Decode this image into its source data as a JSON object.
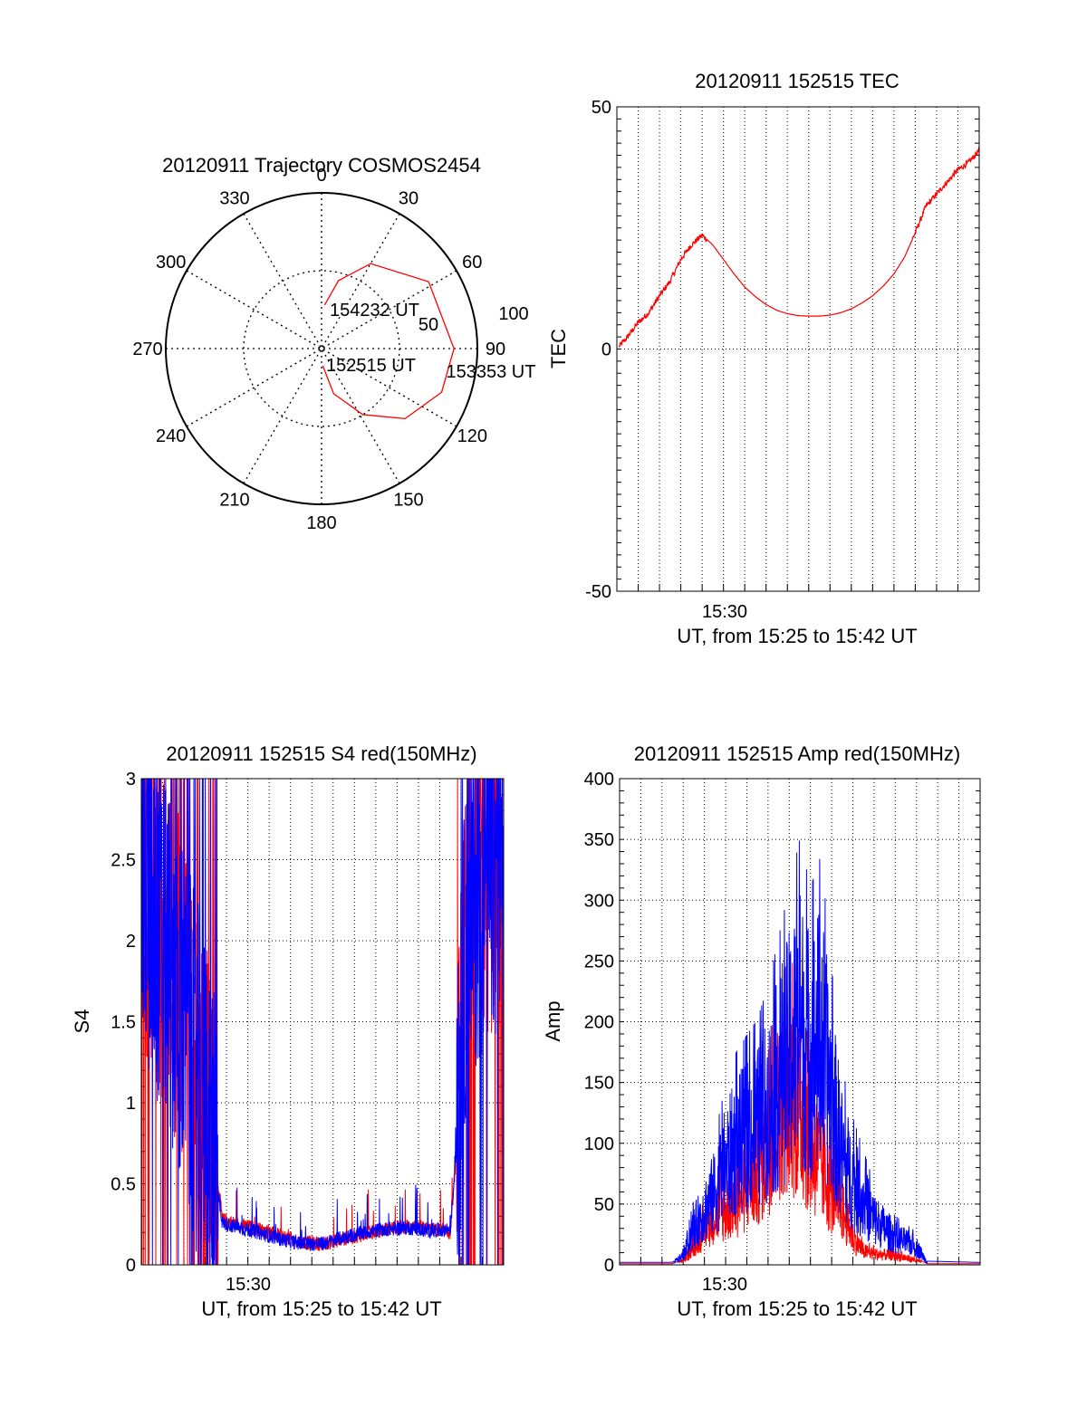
{
  "colors": {
    "red": "#ff0000",
    "blue": "#0000ff",
    "axis": "#000000",
    "grid": "#000000"
  },
  "chart_data": [
    {
      "type": "polar",
      "title": "20120911 Trajectory COSMOS2454",
      "angle_labels": [
        "0",
        "30",
        "60",
        "90",
        "120",
        "150",
        "180",
        "210",
        "240",
        "270",
        "300",
        "330"
      ],
      "radius_labels": [
        "50",
        "100"
      ],
      "rlim": [
        0,
        100
      ],
      "grid": true,
      "trajectory": {
        "color": "#ff0000",
        "points": [
          {
            "azimuth": 4,
            "elevation": 28
          },
          {
            "azimuth": 14,
            "elevation": 45
          },
          {
            "azimuth": 30,
            "elevation": 63
          },
          {
            "azimuth": 58,
            "elevation": 81
          },
          {
            "azimuth": 90,
            "elevation": 85
          },
          {
            "azimuth": 110,
            "elevation": 82
          },
          {
            "azimuth": 130,
            "elevation": 70
          },
          {
            "azimuth": 148,
            "elevation": 50
          },
          {
            "azimuth": 165,
            "elevation": 30
          },
          {
            "azimuth": 176,
            "elevation": 11
          }
        ],
        "annotations": [
          {
            "text": "154232 UT",
            "azimuth": 9,
            "elevation": 26
          },
          {
            "text": "153353 UT",
            "azimuth": 100,
            "elevation": 80
          },
          {
            "text": "152515 UT",
            "azimuth": 170,
            "elevation": 10
          }
        ]
      }
    },
    {
      "type": "line",
      "title": "20120911 152515 TEC",
      "ylabel": "TEC",
      "xlabel": "UT, from 15:25 to 15:42 UT",
      "x_tick_labels": [
        "15:30"
      ],
      "xlim": [
        0,
        17
      ],
      "ylim": [
        -50,
        50
      ],
      "y_ticks": [
        -50,
        0,
        50
      ],
      "grid": true,
      "series": [
        {
          "color": "#ff0000",
          "points": [
            [
              0.1,
              0.5
            ],
            [
              0.5,
              2.5
            ],
            [
              1.0,
              5.5
            ],
            [
              1.5,
              7.5
            ],
            [
              2.0,
              11
            ],
            [
              2.5,
              14
            ],
            [
              3.0,
              18.5
            ],
            [
              3.5,
              21.5
            ],
            [
              4.0,
              23.5
            ],
            [
              4.5,
              21.5
            ],
            [
              5.0,
              18.5
            ],
            [
              5.5,
              15.5
            ],
            [
              6.0,
              12.8
            ],
            [
              6.5,
              10.8
            ],
            [
              7.0,
              9.2
            ],
            [
              7.5,
              8.0
            ],
            [
              8.0,
              7.3
            ],
            [
              8.5,
              6.9
            ],
            [
              9.0,
              6.8
            ],
            [
              9.5,
              6.8
            ],
            [
              10.0,
              7.0
            ],
            [
              10.5,
              7.5
            ],
            [
              11.0,
              8.3
            ],
            [
              11.5,
              9.5
            ],
            [
              12.0,
              11.0
            ],
            [
              12.5,
              13.0
            ],
            [
              13.0,
              15.5
            ],
            [
              13.5,
              19.0
            ],
            [
              14.0,
              24.0
            ],
            [
              14.5,
              29.5
            ],
            [
              15.0,
              32.0
            ],
            [
              15.5,
              34.5
            ],
            [
              16.0,
              37.0
            ],
            [
              16.5,
              38.5
            ],
            [
              17.0,
              41.0
            ]
          ]
        }
      ]
    },
    {
      "type": "line",
      "title": "20120911 152515 S4 red(150MHz)",
      "ylabel": "S4",
      "xlabel": "UT, from 15:25 to 15:42 UT",
      "x_tick_labels": [
        "15:30"
      ],
      "y_tick_labels": [
        "0",
        "0.5",
        "1",
        "1.5",
        "2",
        "2.5",
        "3"
      ],
      "xlim": [
        0,
        17
      ],
      "ylim": [
        0,
        3
      ],
      "grid": true,
      "series": [
        {
          "color": "#ff0000",
          "noise": true,
          "points": [
            [
              0.0,
              2.4
            ],
            [
              0.5,
              2.3
            ],
            [
              1.0,
              2.1
            ],
            [
              1.5,
              1.9
            ],
            [
              2.0,
              1.6
            ],
            [
              2.5,
              1.3
            ],
            [
              3.0,
              1.1
            ],
            [
              3.4,
              0.7
            ],
            [
              3.8,
              0.28
            ],
            [
              4.5,
              0.25
            ],
            [
              5.5,
              0.22
            ],
            [
              6.5,
              0.18
            ],
            [
              7.5,
              0.14
            ],
            [
              8.5,
              0.13
            ],
            [
              9.5,
              0.16
            ],
            [
              10.5,
              0.19
            ],
            [
              11.5,
              0.22
            ],
            [
              12.5,
              0.24
            ],
            [
              13.5,
              0.22
            ],
            [
              14.5,
              0.2
            ],
            [
              14.9,
              0.9
            ],
            [
              15.3,
              2.3
            ],
            [
              16.0,
              2.5
            ],
            [
              17.0,
              2.5
            ]
          ]
        },
        {
          "color": "#0000ff",
          "noise": true,
          "points": [
            [
              0.0,
              2.3
            ],
            [
              0.5,
              2.2
            ],
            [
              1.0,
              2.0
            ],
            [
              1.5,
              1.8
            ],
            [
              2.0,
              1.5
            ],
            [
              2.5,
              1.2
            ],
            [
              3.0,
              1.0
            ],
            [
              3.4,
              0.6
            ],
            [
              3.8,
              0.26
            ],
            [
              4.5,
              0.23
            ],
            [
              5.5,
              0.2
            ],
            [
              6.5,
              0.16
            ],
            [
              7.5,
              0.13
            ],
            [
              8.5,
              0.13
            ],
            [
              9.5,
              0.17
            ],
            [
              10.5,
              0.2
            ],
            [
              11.5,
              0.22
            ],
            [
              12.5,
              0.23
            ],
            [
              13.5,
              0.21
            ],
            [
              14.5,
              0.22
            ],
            [
              14.9,
              0.9
            ],
            [
              15.3,
              2.2
            ],
            [
              16.0,
              2.4
            ],
            [
              17.0,
              2.4
            ]
          ]
        }
      ]
    },
    {
      "type": "line",
      "title": "20120911 152515 Amp red(150MHz)",
      "ylabel": "Amp",
      "xlabel": "UT, from 15:25 to 15:42 UT",
      "x_tick_labels": [
        "15:30"
      ],
      "y_ticks": [
        0,
        50,
        100,
        150,
        200,
        250,
        300,
        350,
        400
      ],
      "xlim": [
        0,
        17
      ],
      "ylim": [
        0,
        400
      ],
      "grid": true,
      "series": [
        {
          "color": "#ff0000",
          "noise": true,
          "points": [
            [
              0.0,
              1
            ],
            [
              2.5,
              1
            ],
            [
              3.0,
              5
            ],
            [
              3.5,
              20
            ],
            [
              4.0,
              40
            ],
            [
              4.5,
              55
            ],
            [
              5.0,
              60
            ],
            [
              5.5,
              70
            ],
            [
              6.0,
              85
            ],
            [
              6.5,
              100
            ],
            [
              7.0,
              130
            ],
            [
              7.5,
              170
            ],
            [
              8.0,
              190
            ],
            [
              8.5,
              170
            ],
            [
              9.0,
              130
            ],
            [
              9.5,
              110
            ],
            [
              10.0,
              80
            ],
            [
              10.5,
              60
            ],
            [
              11.0,
              30
            ],
            [
              11.5,
              15
            ],
            [
              12.0,
              12
            ],
            [
              13.0,
              10
            ],
            [
              14.0,
              5
            ],
            [
              14.5,
              1
            ],
            [
              17.0,
              1
            ]
          ]
        },
        {
          "color": "#0000ff",
          "noise": true,
          "points": [
            [
              0.0,
              2
            ],
            [
              2.5,
              2
            ],
            [
              3.0,
              10
            ],
            [
              3.5,
              40
            ],
            [
              4.0,
              60
            ],
            [
              4.5,
              80
            ],
            [
              5.0,
              110
            ],
            [
              5.5,
              130
            ],
            [
              6.0,
              140
            ],
            [
              6.5,
              150
            ],
            [
              7.0,
              170
            ],
            [
              7.5,
              200
            ],
            [
              8.0,
              230
            ],
            [
              8.5,
              260
            ],
            [
              9.0,
              230
            ],
            [
              9.5,
              250
            ],
            [
              10.0,
              180
            ],
            [
              10.5,
              120
            ],
            [
              11.0,
              90
            ],
            [
              11.5,
              70
            ],
            [
              12.0,
              50
            ],
            [
              12.5,
              40
            ],
            [
              13.0,
              30
            ],
            [
              14.0,
              20
            ],
            [
              14.5,
              3
            ],
            [
              17.0,
              2
            ]
          ]
        }
      ]
    }
  ]
}
